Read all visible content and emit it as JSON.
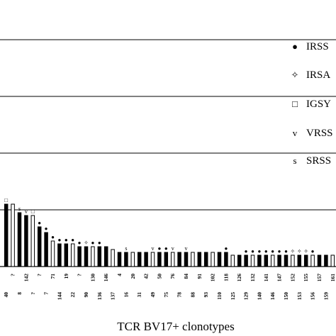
{
  "chart_data": {
    "type": "bar",
    "xlabel": "TCR BV17+ clonotypes",
    "ylabel": "",
    "categories": [
      "40",
      "?",
      "8",
      "142",
      "?",
      "?",
      "7",
      "71",
      "144",
      "19",
      "22",
      "?",
      "90",
      "130",
      "136",
      "146",
      "137",
      "4",
      "16",
      "20",
      "31",
      "42",
      "49",
      "50",
      "75",
      "76",
      "78",
      "84",
      "88",
      "91",
      "93",
      "102",
      "110",
      "118",
      "125",
      "126",
      "129",
      "132",
      "140",
      "141",
      "146",
      "147",
      "150",
      "152",
      "153",
      "155",
      "156",
      "157",
      "159",
      "161"
    ],
    "values": [
      22,
      22,
      19,
      18,
      18,
      14,
      12,
      9,
      8,
      8,
      8,
      7,
      7,
      7,
      7,
      7,
      6,
      5,
      5,
      5,
      5,
      5,
      5,
      5,
      5,
      5,
      5,
      5,
      5,
      5,
      5,
      5,
      5,
      5,
      4,
      4,
      4,
      4,
      4,
      4,
      4,
      4,
      4,
      4,
      4,
      4,
      4,
      4,
      4,
      4
    ],
    "ylim": [
      0,
      120
    ],
    "grid": true,
    "legend": [
      {
        "marker": "●",
        "label": "IRSS"
      },
      {
        "marker": "✧",
        "label": "IRSA"
      },
      {
        "marker": "□",
        "label": "IGSY"
      },
      {
        "marker": "v",
        "label": "VRSS"
      },
      {
        "marker": "s",
        "label": "SRSS"
      }
    ],
    "bar_markers": [
      "□",
      "",
      "s",
      "v",
      "□",
      "●",
      "●",
      "●",
      "●",
      "●",
      "●",
      "●",
      "✧",
      "●",
      "●",
      "",
      "",
      "",
      "s",
      "",
      "",
      "",
      "v",
      "●",
      "●",
      "v",
      "",
      "v",
      "",
      "",
      "",
      "",
      "",
      "●",
      "",
      "",
      "●",
      "●",
      "●",
      "●",
      "●",
      "●",
      "●",
      "✧",
      "✧",
      "✧",
      "●",
      "",
      "",
      ""
    ]
  }
}
